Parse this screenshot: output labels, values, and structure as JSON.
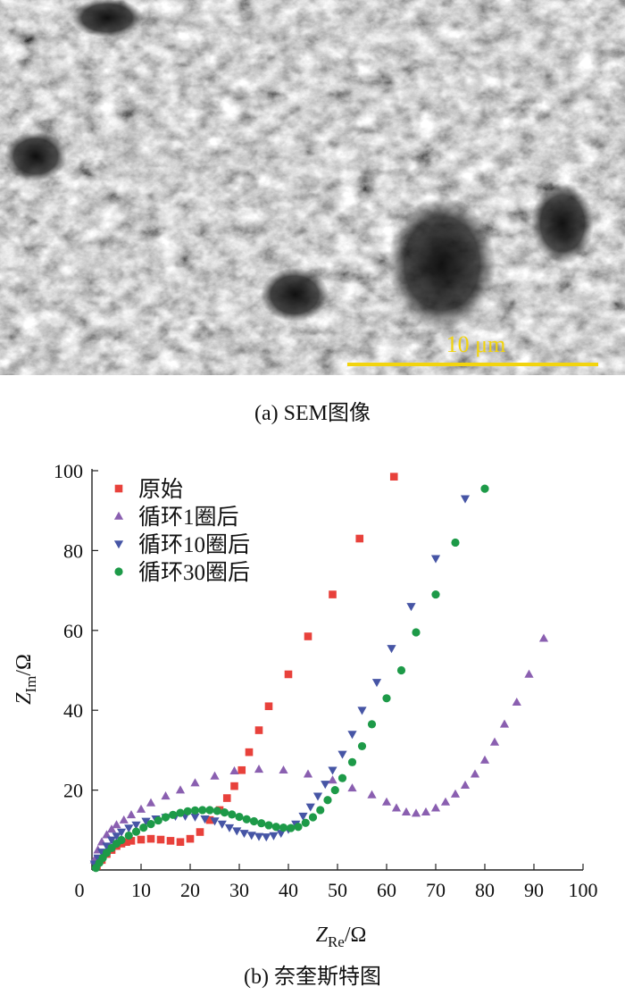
{
  "sem_panel": {
    "scale_bar_label": "10 μm",
    "scale_bar_color": "#f2d40e",
    "caption": "(a) SEM图像"
  },
  "caption_b": "(b) 奈奎斯特图",
  "chart_data": {
    "type": "scatter",
    "xlabel_main": "Z",
    "xlabel_sub": "Re",
    "xlabel_unit": "/Ω",
    "ylabel_main": "Z",
    "ylabel_sub": "Im",
    "ylabel_unit": "/Ω",
    "xlim": [
      0,
      100
    ],
    "ylim": [
      0,
      100
    ],
    "xticks": [
      0,
      10,
      20,
      30,
      40,
      50,
      60,
      70,
      80,
      90,
      100
    ],
    "yticks": [
      20,
      40,
      60,
      80,
      100
    ],
    "grid": false,
    "legend_position": "top-left",
    "series": [
      {
        "name": "原始",
        "marker": "square",
        "color": "#e8413b",
        "points": [
          [
            1,
            1
          ],
          [
            2,
            2.5
          ],
          [
            3,
            4
          ],
          [
            4,
            5
          ],
          [
            5,
            6
          ],
          [
            6,
            6.6
          ],
          [
            7,
            7
          ],
          [
            8,
            7.3
          ],
          [
            10,
            7.6
          ],
          [
            12,
            7.8
          ],
          [
            14,
            7.6
          ],
          [
            16,
            7.3
          ],
          [
            18,
            7
          ],
          [
            20,
            7.8
          ],
          [
            22,
            9.5
          ],
          [
            24,
            12.5
          ],
          [
            26,
            15
          ],
          [
            27.5,
            18
          ],
          [
            29,
            21
          ],
          [
            30.5,
            25
          ],
          [
            32,
            29.5
          ],
          [
            34,
            35
          ],
          [
            36,
            41
          ],
          [
            40,
            49
          ],
          [
            44,
            58.5
          ],
          [
            49,
            69
          ],
          [
            54.5,
            83
          ],
          [
            61.5,
            98.5
          ]
        ]
      },
      {
        "name": "循环1圈后",
        "marker": "triangle-up",
        "color": "#8a5fb0",
        "points": [
          [
            0.5,
            2.5
          ],
          [
            1.2,
            5
          ],
          [
            2,
            7
          ],
          [
            3,
            8.8
          ],
          [
            4,
            10.2
          ],
          [
            5,
            11.3
          ],
          [
            6.5,
            12.5
          ],
          [
            8,
            13.8
          ],
          [
            10,
            15.2
          ],
          [
            12,
            16.8
          ],
          [
            15,
            18.5
          ],
          [
            18,
            20
          ],
          [
            21,
            21.8
          ],
          [
            25,
            23.5
          ],
          [
            29,
            24.8
          ],
          [
            34,
            25.2
          ],
          [
            39,
            25
          ],
          [
            44,
            24
          ],
          [
            49,
            22.5
          ],
          [
            53,
            20.5
          ],
          [
            57,
            18.8
          ],
          [
            60,
            17
          ],
          [
            62,
            15.5
          ],
          [
            64,
            14.5
          ],
          [
            66,
            14.2
          ],
          [
            68,
            14.5
          ],
          [
            70,
            15.5
          ],
          [
            72,
            17
          ],
          [
            74,
            19
          ],
          [
            76,
            21.2
          ],
          [
            78,
            24
          ],
          [
            80,
            27.5
          ],
          [
            82,
            32
          ],
          [
            84,
            36.5
          ],
          [
            86.5,
            42
          ],
          [
            89,
            49
          ],
          [
            92,
            58
          ]
        ]
      },
      {
        "name": "循环10圈后",
        "marker": "triangle-down",
        "color": "#4655a5",
        "points": [
          [
            0.5,
            1.5
          ],
          [
            1.2,
            3
          ],
          [
            2,
            4.5
          ],
          [
            3,
            6
          ],
          [
            4,
            7.5
          ],
          [
            5,
            8.5
          ],
          [
            6,
            9.5
          ],
          [
            7.5,
            10.5
          ],
          [
            9,
            11.3
          ],
          [
            11,
            12.2
          ],
          [
            13,
            12.8
          ],
          [
            15,
            13.2
          ],
          [
            17,
            13.5
          ],
          [
            19,
            13.5
          ],
          [
            21,
            13.3
          ],
          [
            23,
            12.8
          ],
          [
            25,
            12.3
          ],
          [
            26.5,
            11.5
          ],
          [
            28,
            10.6
          ],
          [
            29.5,
            9.8
          ],
          [
            31,
            9.2
          ],
          [
            32.5,
            8.7
          ],
          [
            34,
            8.4
          ],
          [
            35.5,
            8.3
          ],
          [
            37,
            8.6
          ],
          [
            38.5,
            9.2
          ],
          [
            40,
            10.2
          ],
          [
            41.5,
            11.5
          ],
          [
            43,
            13.5
          ],
          [
            44.5,
            15.8
          ],
          [
            46,
            18.5
          ],
          [
            47.5,
            21.5
          ],
          [
            49,
            25
          ],
          [
            51,
            29
          ],
          [
            53,
            34
          ],
          [
            55,
            40
          ],
          [
            58,
            47
          ],
          [
            61,
            55.5
          ],
          [
            65,
            66
          ],
          [
            70,
            78
          ],
          [
            76,
            93
          ]
        ]
      },
      {
        "name": "循环30圈后",
        "marker": "circle",
        "color": "#1d9a48",
        "points": [
          [
            0.8,
            0.5
          ],
          [
            1.5,
            1.8
          ],
          [
            2.2,
            3
          ],
          [
            3,
            4.3
          ],
          [
            4,
            5.5
          ],
          [
            5,
            6.6
          ],
          [
            6,
            7.5
          ],
          [
            7.5,
            8.6
          ],
          [
            9,
            9.6
          ],
          [
            10.5,
            10.6
          ],
          [
            12,
            11.5
          ],
          [
            13.5,
            12.4
          ],
          [
            15,
            13.2
          ],
          [
            16.5,
            13.8
          ],
          [
            18,
            14.3
          ],
          [
            19.5,
            14.7
          ],
          [
            21,
            14.9
          ],
          [
            22.5,
            15
          ],
          [
            24,
            15
          ],
          [
            25.5,
            14.8
          ],
          [
            27,
            14.4
          ],
          [
            28.5,
            13.9
          ],
          [
            30,
            13.3
          ],
          [
            31.5,
            12.7
          ],
          [
            33,
            12.2
          ],
          [
            34.5,
            11.7
          ],
          [
            36,
            11.2
          ],
          [
            37.5,
            10.8
          ],
          [
            39,
            10.6
          ],
          [
            40.5,
            10.5
          ],
          [
            42,
            10.8
          ],
          [
            43.5,
            11.8
          ],
          [
            45,
            13.2
          ],
          [
            46.5,
            15
          ],
          [
            48,
            17.5
          ],
          [
            49.5,
            20
          ],
          [
            51,
            23
          ],
          [
            53,
            27
          ],
          [
            55,
            31
          ],
          [
            57,
            36.5
          ],
          [
            60,
            43
          ],
          [
            63,
            50
          ],
          [
            66,
            59.5
          ],
          [
            70,
            69
          ],
          [
            74,
            82
          ],
          [
            80,
            95.5
          ]
        ]
      }
    ]
  }
}
